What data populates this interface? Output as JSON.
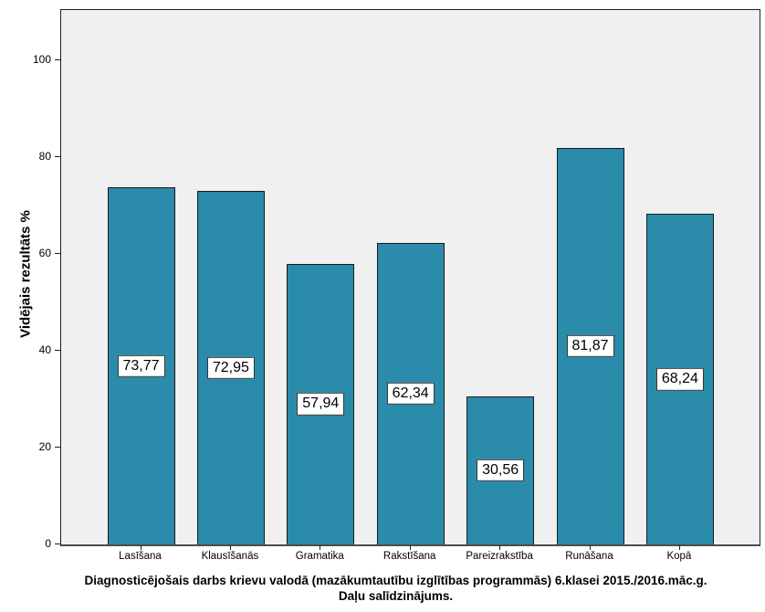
{
  "chart_data": {
    "type": "bar",
    "categories": [
      "Lasīšana",
      "Klausīšanās",
      "Gramatika",
      "Rakstīšana",
      "Pareizrakstība",
      "Runāšana",
      "Kopā"
    ],
    "values": [
      73.77,
      72.95,
      57.94,
      62.34,
      30.56,
      81.87,
      68.24
    ],
    "value_labels": [
      "73,77",
      "72,95",
      "57,94",
      "62,34",
      "30,56",
      "81,87",
      "68,24"
    ],
    "title_line1": "Diagnosticējošais darbs krievu valodā (mazākumtautību izglītības programmās) 6.klasei 2015./2016.māc.g.",
    "title_line2": "Daļu salīdzinājums.",
    "xlabel": "",
    "ylabel": "Vidējais rezultāts %",
    "ylim": [
      0,
      110
    ],
    "yticks": [
      0,
      20,
      40,
      60,
      80,
      100
    ],
    "grid": false,
    "legend": "none",
    "bar_color": "#2A8BAB",
    "bar_border_color": "#1A1A1A",
    "plot_bg": "#F0F0F0",
    "value_label_bg": "#FFFFFF",
    "value_label_border": "#333333"
  }
}
